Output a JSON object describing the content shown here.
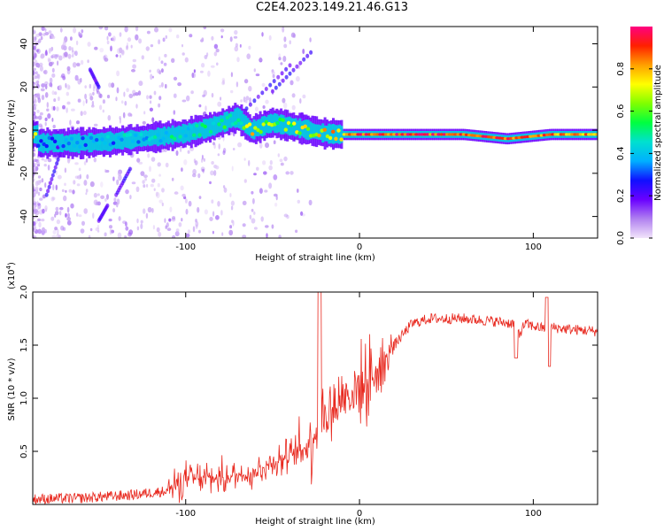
{
  "title": "C2E4.2023.149.21.46.G13",
  "chart_data": [
    {
      "type": "heatmap",
      "xlabel": "Height of straight line (km)",
      "ylabel": "Frequency (Hz)",
      "xlim": [
        -188,
        137
      ],
      "ylim": [
        -50,
        48
      ],
      "xticks": [
        -100,
        0,
        100
      ],
      "yticks": [
        -40,
        -20,
        0,
        20,
        40
      ],
      "colorbar": {
        "label": "Normalized spectral amplitude",
        "range": [
          0.0,
          1.0
        ],
        "ticks": [
          0.0,
          0.2,
          0.4,
          0.6,
          0.8
        ],
        "tick_labels": [
          "0.0",
          "0.2",
          "0.4",
          "0.6",
          "0.8"
        ],
        "colors": [
          "#f2e4fa",
          "#b080f0",
          "#6a00ff",
          "#1010ff",
          "#00b0ff",
          "#00e0d0",
          "#00ff40",
          "#80ff00",
          "#ffff00",
          "#ffa000",
          "#ff2000",
          "#ff0080"
        ]
      },
      "ridge": [
        {
          "x": -185,
          "y": -6.0,
          "amp": 0.25
        },
        {
          "x": -160,
          "y": -6.0,
          "amp": 0.35
        },
        {
          "x": -140,
          "y": -5.0,
          "amp": 0.38
        },
        {
          "x": -120,
          "y": -3.5,
          "amp": 0.4
        },
        {
          "x": -100,
          "y": -1.5,
          "amp": 0.45
        },
        {
          "x": -85,
          "y": 1.5,
          "amp": 0.5
        },
        {
          "x": -70,
          "y": 6.0,
          "amp": 0.5
        },
        {
          "x": -62,
          "y": 0.0,
          "amp": 0.75
        },
        {
          "x": -50,
          "y": 3.5,
          "amp": 0.6
        },
        {
          "x": -35,
          "y": 1.0,
          "amp": 0.65
        },
        {
          "x": -20,
          "y": -1.5,
          "amp": 0.75
        },
        {
          "x": -10,
          "y": -2.0,
          "amp": 0.8
        },
        {
          "x": 0,
          "y": -2.0,
          "amp": 0.9
        },
        {
          "x": 30,
          "y": -2.0,
          "amp": 0.9
        },
        {
          "x": 60,
          "y": -2.0,
          "amp": 0.88
        },
        {
          "x": 85,
          "y": -4.0,
          "amp": 0.9
        },
        {
          "x": 110,
          "y": -2.0,
          "amp": 0.85
        },
        {
          "x": 137,
          "y": -2.0,
          "amp": 0.8
        }
      ]
    },
    {
      "type": "line",
      "xlabel": "Height of straight line (km)",
      "ylabel": "SNR (10 * v/v)",
      "yscale_label": "(x10",
      "yscale_exponent": "4",
      "xlim": [
        -188,
        137
      ],
      "ylim": [
        0,
        20000
      ],
      "xticks": [
        -100,
        0,
        100
      ],
      "yticks": [
        5000,
        10000,
        15000,
        20000
      ],
      "ytick_labels": [
        "0.5",
        "1.0",
        "1.5",
        "2.0"
      ],
      "color": "#e8281e",
      "x": [
        -188,
        -160,
        -130,
        -110,
        -100,
        -80,
        -60,
        -50,
        -40,
        -30,
        -25,
        -22,
        -18,
        -10,
        0,
        10,
        20,
        30,
        40,
        60,
        80,
        90,
        92,
        95,
        100,
        108,
        110,
        120,
        137
      ],
      "y": [
        500,
        600,
        900,
        1300,
        2400,
        2500,
        3000,
        4000,
        4500,
        5500,
        7000,
        8000,
        8500,
        10000,
        11000,
        12500,
        15000,
        17000,
        17500,
        17500,
        17200,
        17000,
        16000,
        17000,
        16800,
        16500,
        16700,
        16500,
        16300
      ]
    }
  ]
}
